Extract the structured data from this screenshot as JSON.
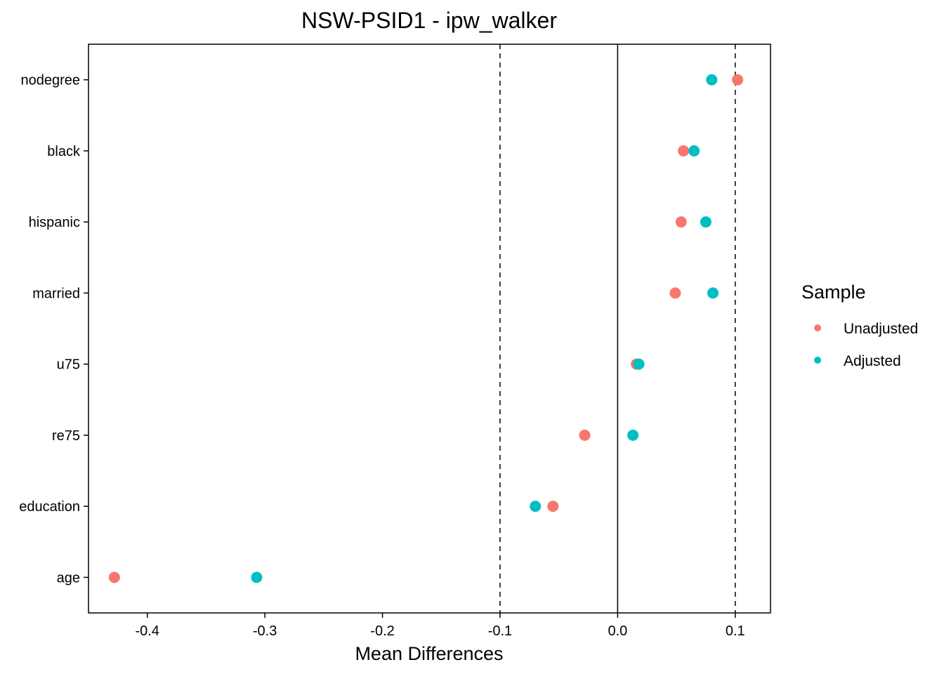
{
  "chart_data": {
    "type": "scatter",
    "title": "NSW-PSID1 - ipw_walker",
    "xlabel": "Mean Differences",
    "ylabel": "",
    "categories": [
      "nodegree",
      "black",
      "hispanic",
      "married",
      "u75",
      "re75",
      "education",
      "age"
    ],
    "xlim": [
      -0.45,
      0.13
    ],
    "xticks": [
      -0.4,
      -0.3,
      -0.2,
      -0.1,
      0.0,
      0.1
    ],
    "xtick_labels": [
      "-0.4",
      "-0.3",
      "-0.2",
      "-0.1",
      "0.0",
      "0.1"
    ],
    "reference_lines": [
      {
        "x": 0.0,
        "style": "solid"
      },
      {
        "x": -0.1,
        "style": "dashed"
      },
      {
        "x": 0.1,
        "style": "dashed"
      }
    ],
    "series": [
      {
        "name": "Unadjusted",
        "color": "#F8766D",
        "values": [
          0.102,
          0.056,
          0.054,
          0.049,
          0.016,
          -0.028,
          -0.055,
          -0.428
        ]
      },
      {
        "name": "Adjusted",
        "color": "#00BFC4",
        "values": [
          0.08,
          0.065,
          0.075,
          0.081,
          0.018,
          0.013,
          -0.07,
          -0.307
        ]
      }
    ],
    "legend": {
      "title": "Sample",
      "position": "right"
    },
    "grid": false
  }
}
